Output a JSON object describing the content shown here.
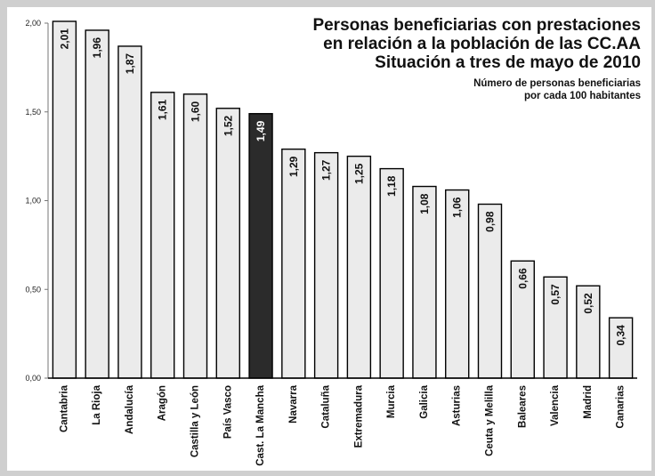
{
  "chart_data": {
    "type": "bar",
    "title_lines": [
      "Personas beneficiarias con prestaciones",
      "en relación a la población de las CC.AA",
      "Situación a tres de mayo de 2010"
    ],
    "subtitle_lines": [
      "Número de personas beneficiarias",
      "por cada 100 habitantes"
    ],
    "categories": [
      "Cantabria",
      "La Rioja",
      "Andalucía",
      "Aragón",
      "Castilla y León",
      "País Vasco",
      "Cast. La Mancha",
      "Navarra",
      "Cataluña",
      "Extremadura",
      "Murcia",
      "Galicia",
      "Asturias",
      "Ceuta y Melilla",
      "Baleares",
      "Valencia",
      "Madrid",
      "Canarias"
    ],
    "values": [
      2.01,
      1.96,
      1.87,
      1.61,
      1.6,
      1.52,
      1.49,
      1.29,
      1.27,
      1.25,
      1.18,
      1.08,
      1.06,
      0.98,
      0.66,
      0.57,
      0.52,
      0.34
    ],
    "value_labels": [
      "2,01",
      "1,96",
      "1,87",
      "1,61",
      "1,60",
      "1,52",
      "1,49",
      "1,29",
      "1,27",
      "1,25",
      "1,18",
      "1,08",
      "1,06",
      "0,98",
      "0,66",
      "0,57",
      "0,52",
      "0,34"
    ],
    "highlight_index": 6,
    "yticks": [
      0,
      0.5,
      1.0,
      1.5,
      2.0
    ],
    "ytick_labels": [
      "0,00",
      "0,50",
      "1,00",
      "1,50",
      "2,00"
    ],
    "ylim": [
      0,
      2.0
    ],
    "grid": false,
    "legend": "none",
    "colors": {
      "bar": "#ebebeb",
      "highlight": "#2b2b2b",
      "stroke": "#000000",
      "frame": "#cfcfcf"
    }
  }
}
